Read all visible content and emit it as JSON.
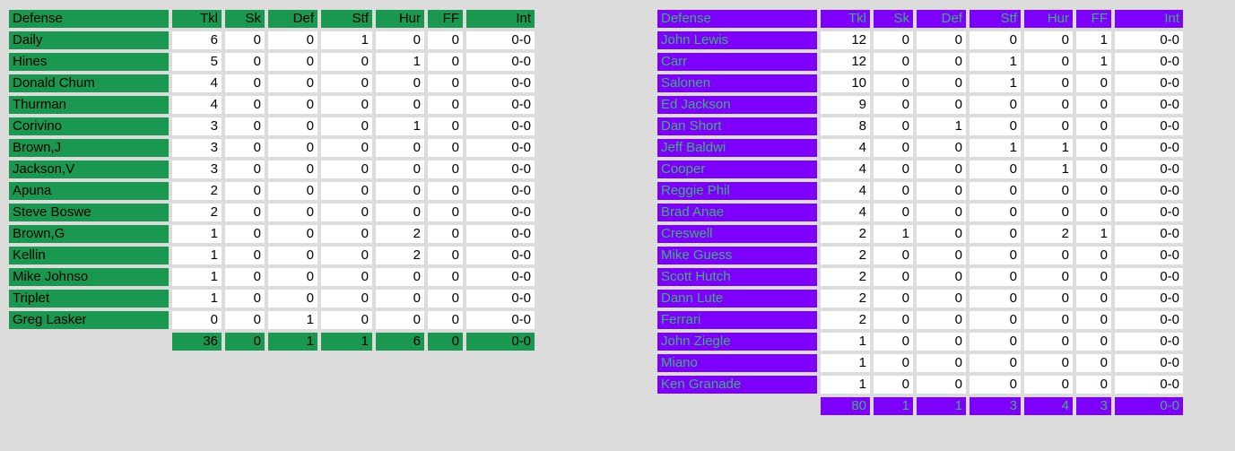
{
  "colors": {
    "page_bg": "#DCDCDC",
    "left_accent": "#1A9850",
    "left_text": "#000000",
    "right_accent": "#7D00FB",
    "right_accent_text": "#3CB371",
    "cell_bg": "#FFFFFF",
    "cell_text": "#000000"
  },
  "left_table": {
    "header": [
      "Defense",
      "Tkl",
      "Sk",
      "Def",
      "Stf",
      "Hur",
      "FF",
      "Int"
    ],
    "rows": [
      [
        "Daily",
        "6",
        "0",
        "0",
        "1",
        "0",
        "0",
        "0-0"
      ],
      [
        "Hines",
        "5",
        "0",
        "0",
        "0",
        "1",
        "0",
        "0-0"
      ],
      [
        "Donald Chum",
        "4",
        "0",
        "0",
        "0",
        "0",
        "0",
        "0-0"
      ],
      [
        "Thurman",
        "4",
        "0",
        "0",
        "0",
        "0",
        "0",
        "0-0"
      ],
      [
        "Corivino",
        "3",
        "0",
        "0",
        "0",
        "1",
        "0",
        "0-0"
      ],
      [
        "Brown,J",
        "3",
        "0",
        "0",
        "0",
        "0",
        "0",
        "0-0"
      ],
      [
        "Jackson,V",
        "3",
        "0",
        "0",
        "0",
        "0",
        "0",
        "0-0"
      ],
      [
        "Apuna",
        "2",
        "0",
        "0",
        "0",
        "0",
        "0",
        "0-0"
      ],
      [
        "Steve Boswe",
        "2",
        "0",
        "0",
        "0",
        "0",
        "0",
        "0-0"
      ],
      [
        "Brown,G",
        "1",
        "0",
        "0",
        "0",
        "2",
        "0",
        "0-0"
      ],
      [
        "Kellin",
        "1",
        "0",
        "0",
        "0",
        "2",
        "0",
        "0-0"
      ],
      [
        "Mike Johnso",
        "1",
        "0",
        "0",
        "0",
        "0",
        "0",
        "0-0"
      ],
      [
        "Triplet",
        "1",
        "0",
        "0",
        "0",
        "0",
        "0",
        "0-0"
      ],
      [
        "Greg Lasker",
        "0",
        "0",
        "1",
        "0",
        "0",
        "0",
        "0-0"
      ]
    ],
    "totals": [
      "",
      "36",
      "0",
      "1",
      "1",
      "6",
      "0",
      "0-0"
    ]
  },
  "right_table": {
    "header": [
      "Defense",
      "Tkl",
      "Sk",
      "Def",
      "Stf",
      "Hur",
      "FF",
      "Int"
    ],
    "rows": [
      [
        "John Lewis",
        "12",
        "0",
        "0",
        "0",
        "0",
        "1",
        "0-0"
      ],
      [
        "Carr",
        "12",
        "0",
        "0",
        "1",
        "0",
        "1",
        "0-0"
      ],
      [
        "Salonen",
        "10",
        "0",
        "0",
        "1",
        "0",
        "0",
        "0-0"
      ],
      [
        "Ed Jackson",
        "9",
        "0",
        "0",
        "0",
        "0",
        "0",
        "0-0"
      ],
      [
        "Dan Short",
        "8",
        "0",
        "1",
        "0",
        "0",
        "0",
        "0-0"
      ],
      [
        "Jeff Baldwi",
        "4",
        "0",
        "0",
        "1",
        "1",
        "0",
        "0-0"
      ],
      [
        "Cooper",
        "4",
        "0",
        "0",
        "0",
        "1",
        "0",
        "0-0"
      ],
      [
        "Reggie Phil",
        "4",
        "0",
        "0",
        "0",
        "0",
        "0",
        "0-0"
      ],
      [
        "Brad Anae",
        "4",
        "0",
        "0",
        "0",
        "0",
        "0",
        "0-0"
      ],
      [
        "Creswell",
        "2",
        "1",
        "0",
        "0",
        "2",
        "1",
        "0-0"
      ],
      [
        "Mike Guess",
        "2",
        "0",
        "0",
        "0",
        "0",
        "0",
        "0-0"
      ],
      [
        "Scott Hutch",
        "2",
        "0",
        "0",
        "0",
        "0",
        "0",
        "0-0"
      ],
      [
        "Dann Lute",
        "2",
        "0",
        "0",
        "0",
        "0",
        "0",
        "0-0"
      ],
      [
        "Ferrari",
        "2",
        "0",
        "0",
        "0",
        "0",
        "0",
        "0-0"
      ],
      [
        "John Ziegle",
        "1",
        "0",
        "0",
        "0",
        "0",
        "0",
        "0-0"
      ],
      [
        "Miano",
        "1",
        "0",
        "0",
        "0",
        "0",
        "0",
        "0-0"
      ],
      [
        "Ken Granade",
        "1",
        "0",
        "0",
        "0",
        "0",
        "0",
        "0-0"
      ]
    ],
    "totals": [
      "",
      "80",
      "1",
      "1",
      "3",
      "4",
      "3",
      "0-0"
    ]
  }
}
